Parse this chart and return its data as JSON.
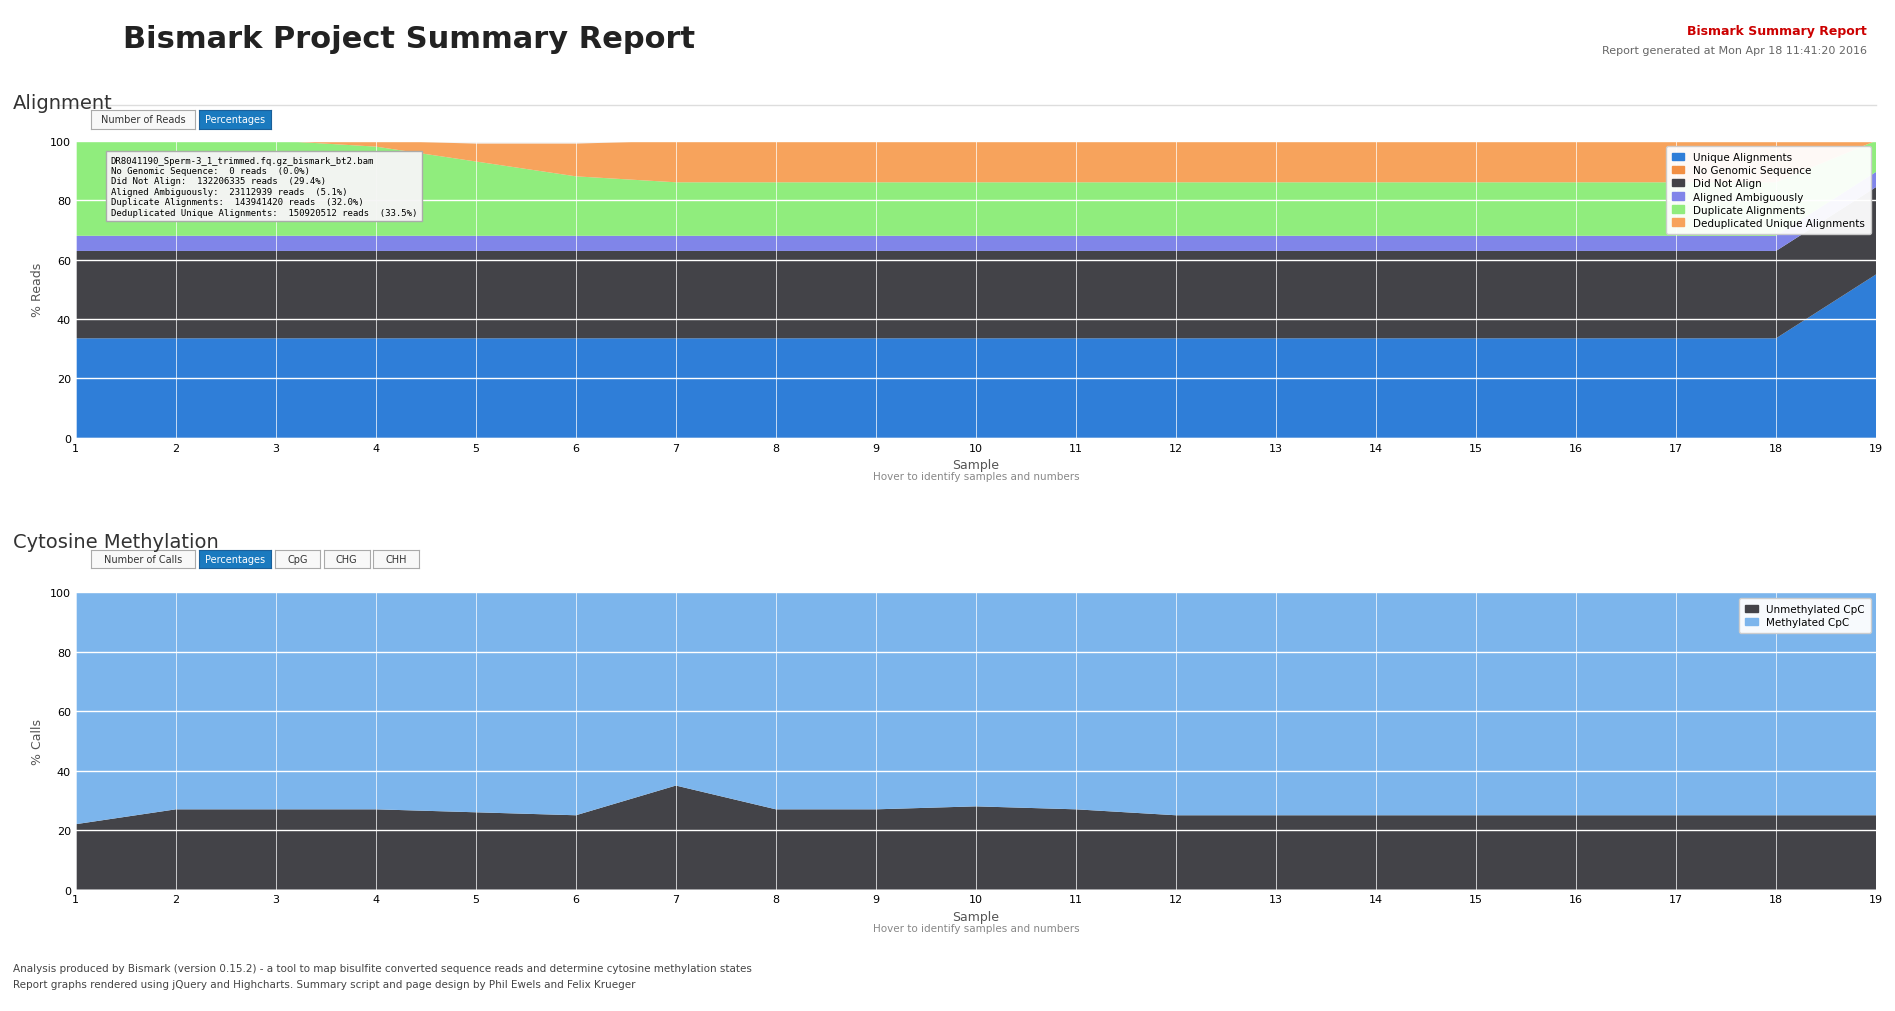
{
  "title": "Bismark Project Summary Report",
  "subtitle": "Bismark Summary Report",
  "subtitle2": "Report generated at Mon Apr 18 11:41:20 2016",
  "footer1": "Analysis produced by Bismark (version 0.15.2) - a tool to map bisulfite converted sequence reads and determine cytosine methylation states",
  "footer2": "Report graphs rendered using jQuery and Highcharts. Summary script and page design by Phil Ewels and Felix Krueger",
  "alignment_title": "Alignment",
  "alignment_xlabel": "Sample",
  "alignment_ylabel": "% Reads",
  "alignment_ylim": [
    0,
    100
  ],
  "alignment_samples": [
    1,
    2,
    3,
    4,
    5,
    6,
    7,
    8,
    9,
    10,
    11,
    12,
    13,
    14,
    15,
    16,
    17,
    18,
    19
  ],
  "unique_alignments": [
    33.5,
    33.5,
    33.5,
    33.5,
    33.5,
    33.5,
    33.5,
    33.5,
    33.5,
    33.5,
    33.5,
    33.5,
    33.5,
    33.5,
    33.5,
    33.5,
    33.5,
    33.5,
    55
  ],
  "no_genomic_sequence": [
    0,
    0,
    0,
    0,
    0,
    0,
    0,
    0,
    0,
    0,
    0,
    0,
    0,
    0,
    0,
    0,
    0,
    0,
    0
  ],
  "did_not_align": [
    29.4,
    29.4,
    29.4,
    29.4,
    29.4,
    29.4,
    29.4,
    29.4,
    29.4,
    29.4,
    29.4,
    29.4,
    29.4,
    29.4,
    29.4,
    29.4,
    29.4,
    29.4,
    29.4
  ],
  "aligned_ambiguously": [
    5.1,
    5.1,
    5.1,
    5.1,
    5.1,
    5.1,
    5.1,
    5.1,
    5.1,
    5.1,
    5.1,
    5.1,
    5.1,
    5.1,
    5.1,
    5.1,
    5.1,
    5.1,
    5.1
  ],
  "duplicate_alignments": [
    32.0,
    32.0,
    32.0,
    30.0,
    25.0,
    20.0,
    18.0,
    18.0,
    18.0,
    18.0,
    18.0,
    18.0,
    18.0,
    18.0,
    18.0,
    18.0,
    18.0,
    18.0,
    10.5
  ],
  "deduplicated_unique": [
    0,
    0,
    0,
    2.0,
    6.0,
    11.0,
    14.0,
    14.0,
    14.0,
    14.0,
    14.0,
    14.0,
    14.0,
    14.0,
    14.0,
    14.0,
    14.0,
    14.0,
    0
  ],
  "unique_color": "#2f7ed8",
  "no_genomic_color": "#f28f43",
  "did_not_align_color": "#434348",
  "ambiguous_color": "#8085e9",
  "duplicate_color": "#90ed7d",
  "deduplicated_color": "#f7a35c",
  "methylation_title": "Cytosine Methylation",
  "methylation_xlabel": "Sample",
  "methylation_ylabel": "% Calls",
  "methylation_ylim": [
    0,
    100
  ],
  "methylation_samples": [
    1,
    2,
    3,
    4,
    5,
    6,
    7,
    8,
    9,
    10,
    11,
    12,
    13,
    14,
    15,
    16,
    17,
    18,
    19
  ],
  "unmethylated_cpg": [
    22,
    27,
    27,
    27,
    26,
    25,
    35,
    27,
    27,
    28,
    27,
    25,
    25,
    25,
    25,
    25,
    25,
    25,
    25
  ],
  "methylated_cpg": [
    78,
    73,
    73,
    73,
    74,
    75,
    65,
    73,
    73,
    72,
    73,
    75,
    75,
    75,
    75,
    75,
    75,
    75,
    75
  ],
  "unmethylated_color": "#434348",
  "methylated_color": "#7cb5ec",
  "bg_color": "#ffffff",
  "plot_bg_color": "#f3f3f3",
  "grid_color": "#ffffff",
  "tooltip_title": "DR8041190_Sperm-3_1_trimmed.fq.gz_bismark_bt2.bam",
  "tooltip_lines": [
    [
      "No Genomic Sequence:",
      "0 reads  (0.0%)"
    ],
    [
      "Did Not Align:",
      "132206335 reads  (29.4%)"
    ],
    [
      "Aligned Ambiguously:",
      "23112939 reads  (5.1%)"
    ],
    [
      "Duplicate Alignments:",
      "143941420 reads  (32.0%)"
    ],
    [
      "Deduplicated Unique Alignments:",
      "150920512 reads  (33.5%)"
    ]
  ]
}
